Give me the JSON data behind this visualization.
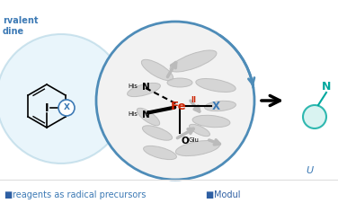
{
  "bg_color": "#ffffff",
  "left_circle_color": "#a8cfe0",
  "left_circle_fill": "#d8eef8",
  "right_circle_color": "#4e8cb8",
  "protein_fill": "#f0f0f0",
  "fe_color": "#cc2200",
  "blue_color": "#3d7ab5",
  "teal_color": "#00a89e",
  "black": "#000000",
  "bottom_square_color": "#2e5fa3",
  "bottom_text1": "reagents as radical precursors",
  "bottom_text2": "Modul",
  "label_rvalent": "rvalent",
  "label_dine": "dine",
  "label_I": "I",
  "label_X": "X",
  "label_Fe": "Fe",
  "label_II": "II",
  "label_His": "His",
  "label_N": "N",
  "label_O": "O",
  "label_Glu": "Glu",
  "figw": 3.76,
  "figh": 2.36,
  "dpi": 100
}
